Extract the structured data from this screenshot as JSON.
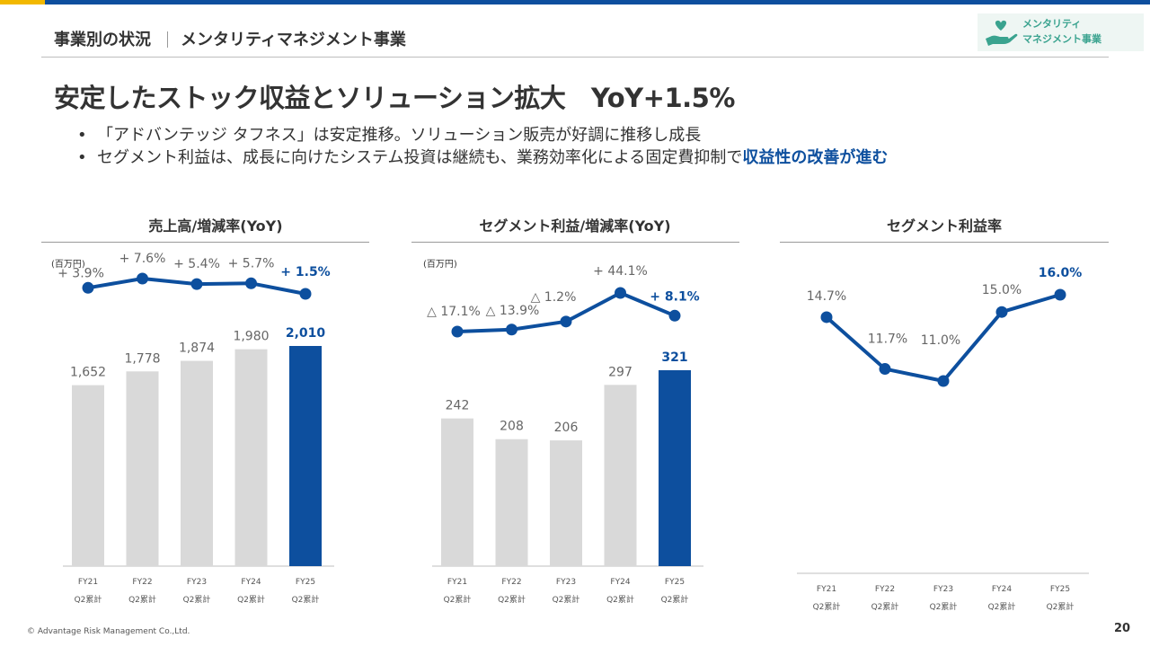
{
  "header": {
    "breadcrumb_section": "事業別の状況",
    "breadcrumb_segment": "メンタリティマネジメント事業",
    "logo_line1": "メンタリティ",
    "logo_line2": "マネジメント事業",
    "logo_icon": "heart-hand-icon"
  },
  "title": "安定したストック収益とソリューション拡大　YoY+1.5%",
  "bullets": {
    "b1": "「アドバンテッジ タフネス」は安定推移。ソリューション販売が好調に推移し成長",
    "b2_plain": "セグメント利益は、成長に向けたシステム投資は継続も、業務効率化による固定費抑制で",
    "b2_highlight": "収益性の改善が進む"
  },
  "colors": {
    "accent": "#0d4f9e",
    "bar_gray": "#d9d9d9",
    "label_gray": "#666666",
    "highlight": "#0d4f9e"
  },
  "charts": {
    "sales": {
      "title": "売上高/増減率(YoY)",
      "unit": "(百万円)",
      "categories": [
        "FY21\nQ2累計",
        "FY22\nQ2累計",
        "FY23\nQ2累計",
        "FY24\nQ2累計",
        "FY25\nQ2累計"
      ],
      "bars": [
        1652,
        1778,
        1874,
        1980,
        2010
      ],
      "bar_labels": [
        "1,652",
        "1,778",
        "1,874",
        "1,980",
        "2,010"
      ],
      "yoy": [
        3.9,
        7.6,
        5.4,
        5.7,
        1.5
      ],
      "yoy_labels": [
        "+ 3.9%",
        "+ 7.6%",
        "+ 5.4%",
        "+ 5.7%",
        "+ 1.5%"
      ]
    },
    "profit": {
      "title": "セグメント利益/増減率(YoY)",
      "unit": "(百万円)",
      "categories": [
        "FY21\nQ2累計",
        "FY22\nQ2累計",
        "FY23\nQ2累計",
        "FY24\nQ2累計",
        "FY25\nQ2累計"
      ],
      "bars": [
        242,
        208,
        206,
        297,
        321
      ],
      "bar_labels": [
        "242",
        "208",
        "206",
        "297",
        "321"
      ],
      "yoy": [
        -17.1,
        -13.9,
        -1.2,
        44.1,
        8.1
      ],
      "yoy_labels": [
        "△ 17.1%",
        "△ 13.9%",
        "△ 1.2%",
        "+ 44.1%",
        "+ 8.1%"
      ]
    },
    "margin": {
      "title": "セグメント利益率",
      "categories": [
        "FY21\nQ2累計",
        "FY22\nQ2累計",
        "FY23\nQ2累計",
        "FY24\nQ2累計",
        "FY25\nQ2累計"
      ],
      "values": [
        14.7,
        11.7,
        11.0,
        15.0,
        16.0
      ],
      "labels": [
        "14.7%",
        "11.7%",
        "11.0%",
        "15.0%",
        "16.0%"
      ]
    }
  },
  "chart_data": [
    {
      "type": "bar",
      "title": "売上高/増減率(YoY)",
      "ylabel": "(百万円)",
      "categories": [
        "FY21 Q2累計",
        "FY22 Q2累計",
        "FY23 Q2累計",
        "FY24 Q2累計",
        "FY25 Q2累計"
      ],
      "series": [
        {
          "values": [
            1652,
            1778,
            1874,
            1980,
            2010
          ]
        },
        {
          "type": "line",
          "values": [
            3.9,
            7.6,
            5.4,
            5.7,
            1.5
          ]
        }
      ]
    },
    {
      "type": "bar",
      "title": "セグメント利益/増減率(YoY)",
      "ylabel": "(百万円)",
      "categories": [
        "FY21 Q2累計",
        "FY22 Q2累計",
        "FY23 Q2累計",
        "FY24 Q2累計",
        "FY25 Q2累計"
      ],
      "series": [
        {
          "values": [
            242,
            208,
            206,
            297,
            321
          ]
        },
        {
          "type": "line",
          "values": [
            -17.1,
            -13.9,
            -1.2,
            44.1,
            8.1
          ]
        }
      ]
    },
    {
      "type": "line",
      "title": "セグメント利益率",
      "categories": [
        "FY21 Q2累計",
        "FY22 Q2累計",
        "FY23 Q2累計",
        "FY24 Q2累計",
        "FY25 Q2累計"
      ],
      "values": [
        14.7,
        11.7,
        11.0,
        15.0,
        16.0
      ]
    }
  ],
  "footer": {
    "copyright": "© Advantage Risk Management Co.,Ltd.",
    "page": "20"
  }
}
